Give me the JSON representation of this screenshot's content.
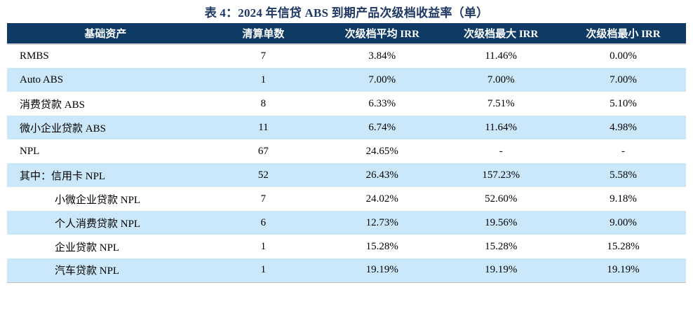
{
  "title": "表 4：2024 年信贷 ABS 到期产品次级档收益率（单）",
  "colors": {
    "title_text": "#1F3864",
    "header_bg": "#0E3A64",
    "header_text": "#FFFFFF",
    "row_bg": "#FFFFFF",
    "row_alt_bg": "#CBE8FA",
    "body_text": "#000000",
    "table_border": "#BFBFBF"
  },
  "table": {
    "headers": [
      "基础资产",
      "清算单数",
      "次级档平均 IRR",
      "次级档最大 IRR",
      "次级档最小 IRR"
    ],
    "rows": [
      {
        "asset": "RMBS",
        "indent": false,
        "count": "7",
        "avg_irr": "3.84%",
        "max_irr": "11.46%",
        "min_irr": "0.00%"
      },
      {
        "asset": "Auto ABS",
        "indent": false,
        "count": "1",
        "avg_irr": "7.00%",
        "max_irr": "7.00%",
        "min_irr": "7.00%"
      },
      {
        "asset": "消费贷款 ABS",
        "indent": false,
        "count": "8",
        "avg_irr": "6.33%",
        "max_irr": "7.51%",
        "min_irr": "5.10%"
      },
      {
        "asset": "微小企业贷款 ABS",
        "indent": false,
        "count": "11",
        "avg_irr": "6.74%",
        "max_irr": "11.64%",
        "min_irr": "4.98%"
      },
      {
        "asset": "NPL",
        "indent": false,
        "count": "67",
        "avg_irr": "24.65%",
        "max_irr": "-",
        "min_irr": "-"
      },
      {
        "asset": "其中：信用卡 NPL",
        "indent": false,
        "count": "52",
        "avg_irr": "26.43%",
        "max_irr": "157.23%",
        "min_irr": "5.58%"
      },
      {
        "asset": "小微企业贷款 NPL",
        "indent": true,
        "count": "7",
        "avg_irr": "24.02%",
        "max_irr": "52.60%",
        "min_irr": "9.18%"
      },
      {
        "asset": "个人消费贷款 NPL",
        "indent": true,
        "count": "6",
        "avg_irr": "12.73%",
        "max_irr": "19.56%",
        "min_irr": "9.00%"
      },
      {
        "asset": "企业贷款 NPL",
        "indent": true,
        "count": "1",
        "avg_irr": "15.28%",
        "max_irr": "15.28%",
        "min_irr": "15.28%"
      },
      {
        "asset": "汽车贷款 NPL",
        "indent": true,
        "count": "1",
        "avg_irr": "19.19%",
        "max_irr": "19.19%",
        "min_irr": "19.19%"
      }
    ]
  }
}
